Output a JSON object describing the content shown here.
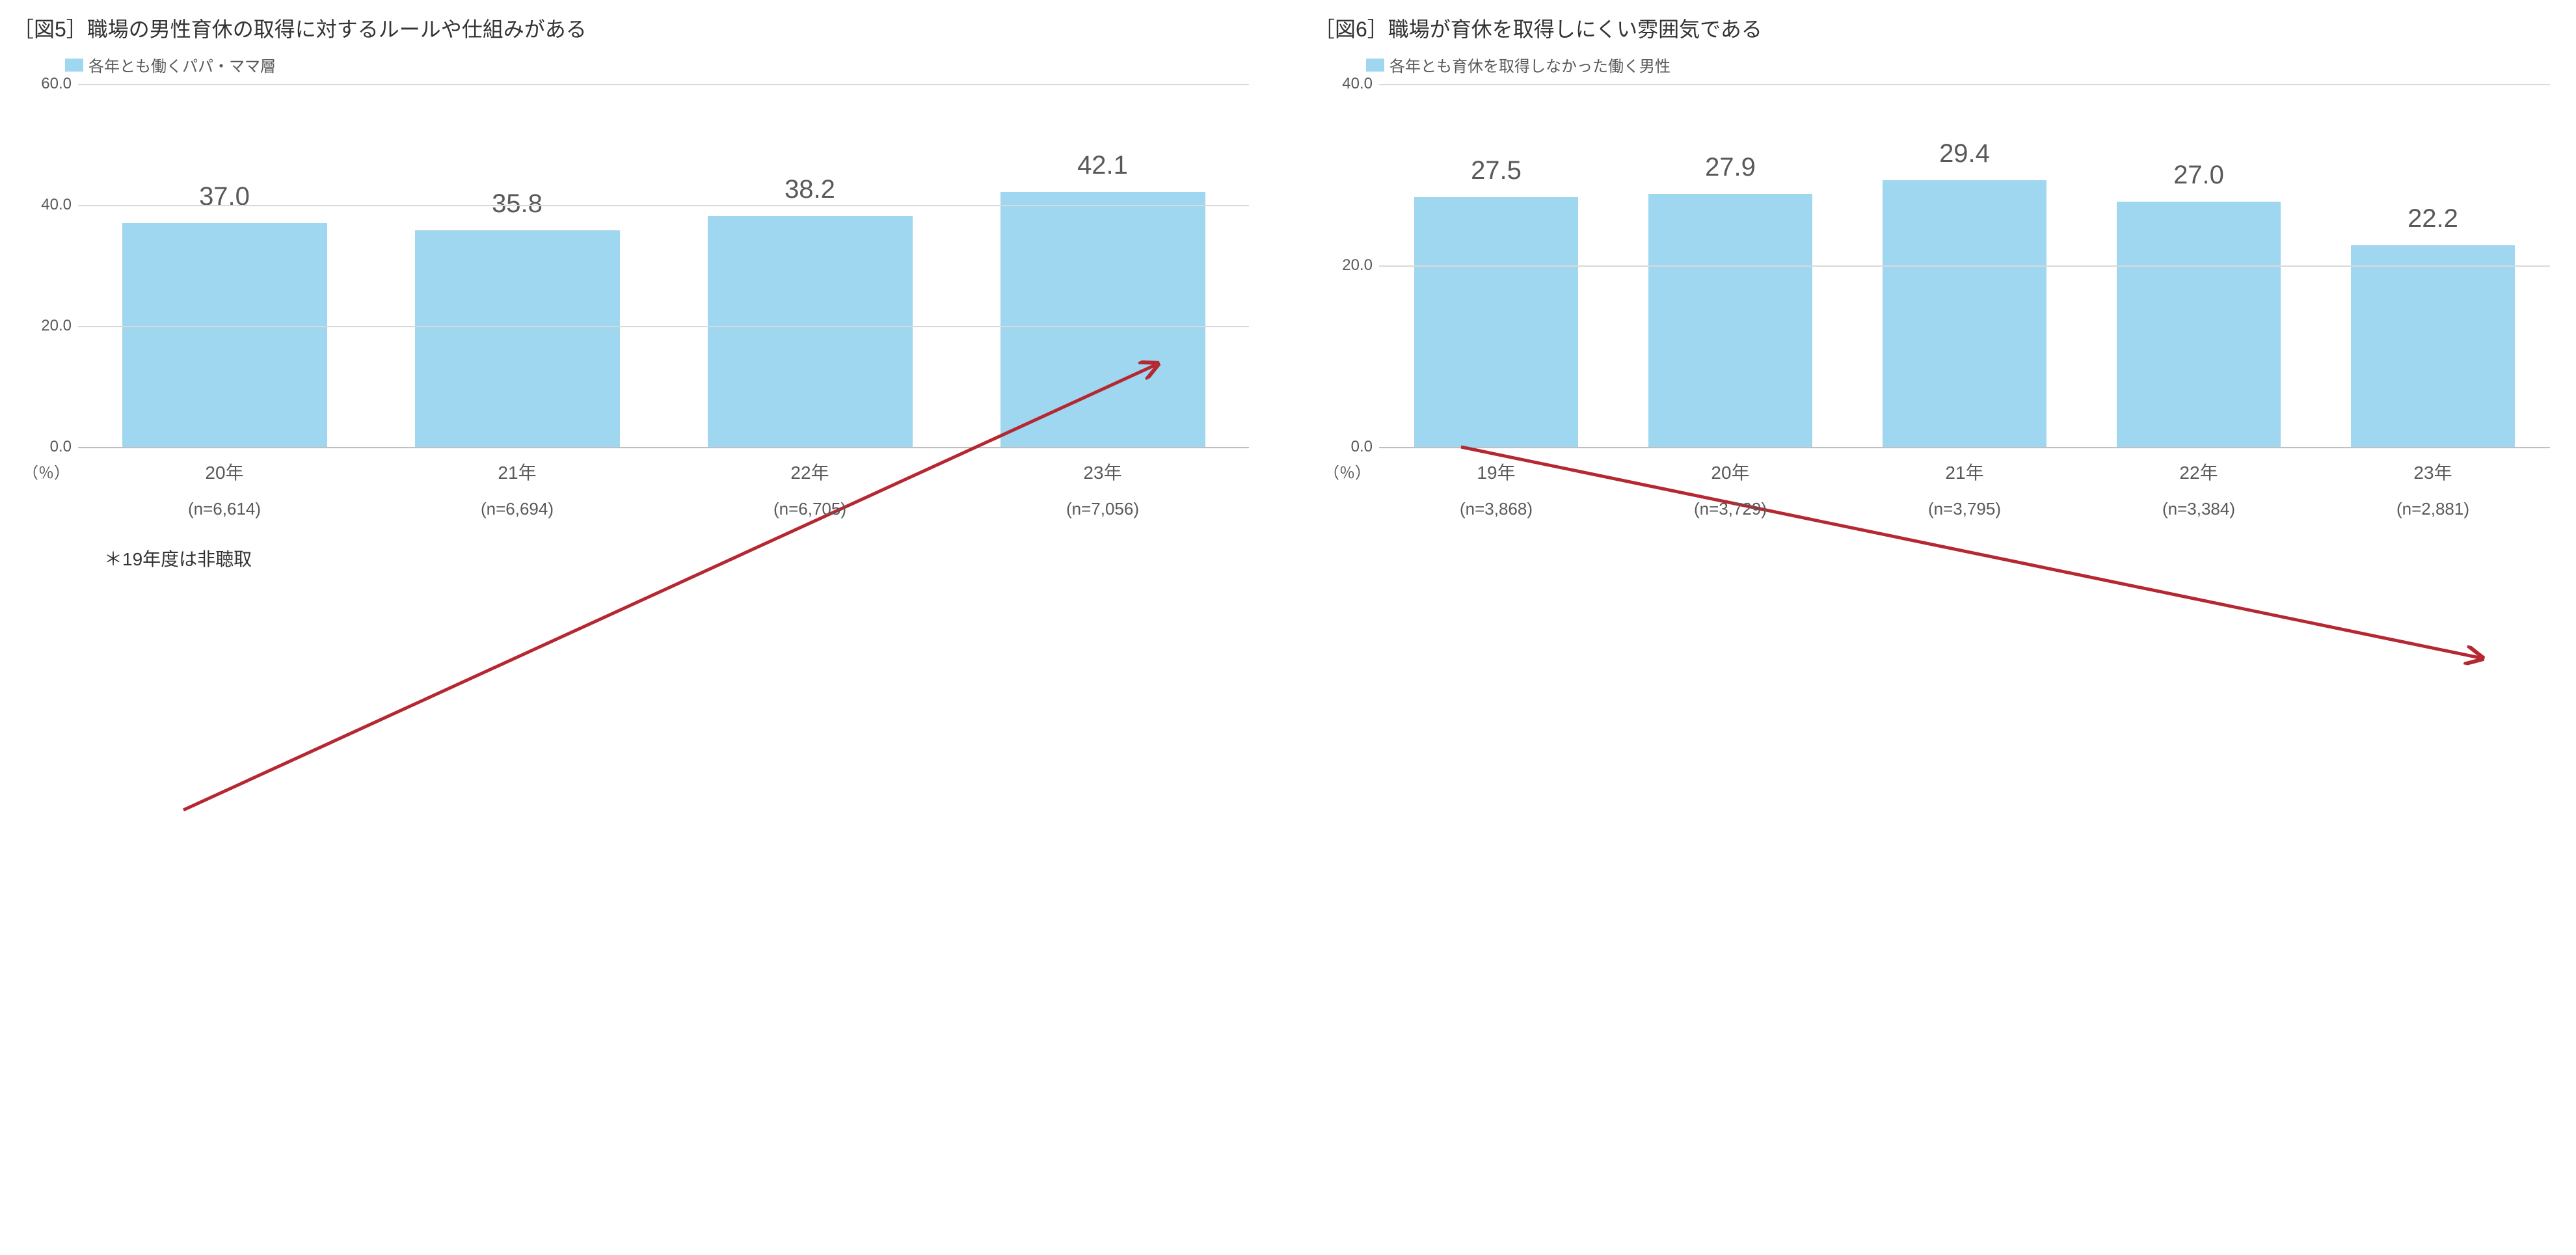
{
  "chart5": {
    "type": "bar",
    "title": "［図5］職場の男性育休の取得に対するルールや仕組みがある",
    "legend_label": "各年とも働くパパ・ママ層",
    "legend_swatch_color": "#9ed7ef",
    "bar_color": "#9ed7ef",
    "background_color": "#ffffff",
    "grid_color": "#d9d9d9",
    "axis_color": "#bfbfbf",
    "ylim": [
      0,
      60
    ],
    "yticks": [
      "0.0",
      "20.0",
      "40.0",
      "60.0"
    ],
    "ytick_values": [
      0,
      20,
      40,
      60
    ],
    "bars": [
      {
        "year": "20年",
        "n": "(n=6,614)",
        "value": 37.0,
        "label": "37.0"
      },
      {
        "year": "21年",
        "n": "(n=6,694)",
        "value": 35.8,
        "label": "35.8"
      },
      {
        "year": "22年",
        "n": "(n=6,705)",
        "value": 38.2,
        "label": "38.2"
      },
      {
        "year": "23年",
        "n": "(n=7,056)",
        "value": 42.1,
        "label": "42.1"
      }
    ],
    "pct_unit": "（％）",
    "footnote": "＊19年度は非聴取",
    "trend_arrow": {
      "color": "#b52731",
      "stroke_width": 5,
      "x1_pct": 9,
      "y1_pct": 62,
      "x2_pct": 92,
      "y2_pct": 24
    },
    "title_fontsize": 32,
    "legend_fontsize": 24,
    "value_fontsize": 40,
    "tick_fontsize": 24,
    "xtick_fontsize": 28,
    "n_fontsize": 26,
    "bar_width_pct": 70
  },
  "chart6": {
    "type": "bar",
    "title": "［図6］職場が育休を取得しにくい雰囲気である",
    "legend_label": "各年とも育休を取得しなかった働く男性",
    "legend_swatch_color": "#9ed7ef",
    "bar_color": "#9ed7ef",
    "background_color": "#ffffff",
    "grid_color": "#d9d9d9",
    "axis_color": "#bfbfbf",
    "ylim": [
      0,
      40
    ],
    "yticks": [
      "0.0",
      "20.0",
      "40.0"
    ],
    "ytick_values": [
      0,
      20,
      40
    ],
    "bars": [
      {
        "year": "19年",
        "n": "(n=3,868)",
        "value": 27.5,
        "label": "27.5"
      },
      {
        "year": "20年",
        "n": "(n=3,729)",
        "value": 27.9,
        "label": "27.9"
      },
      {
        "year": "21年",
        "n": "(n=3,795)",
        "value": 29.4,
        "label": "29.4"
      },
      {
        "year": "22年",
        "n": "(n=3,384)",
        "value": 27.0,
        "label": "27.0"
      },
      {
        "year": "23年",
        "n": "(n=2,881)",
        "value": 22.2,
        "label": "22.2"
      }
    ],
    "pct_unit": "（％）",
    "trend_arrow": {
      "color": "#b52731",
      "stroke_width": 5,
      "x1_pct": 7,
      "y1_pct": 31,
      "x2_pct": 94,
      "y2_pct": 49
    },
    "title_fontsize": 32,
    "legend_fontsize": 24,
    "value_fontsize": 40,
    "tick_fontsize": 24,
    "xtick_fontsize": 28,
    "n_fontsize": 26,
    "bar_width_pct": 70
  }
}
